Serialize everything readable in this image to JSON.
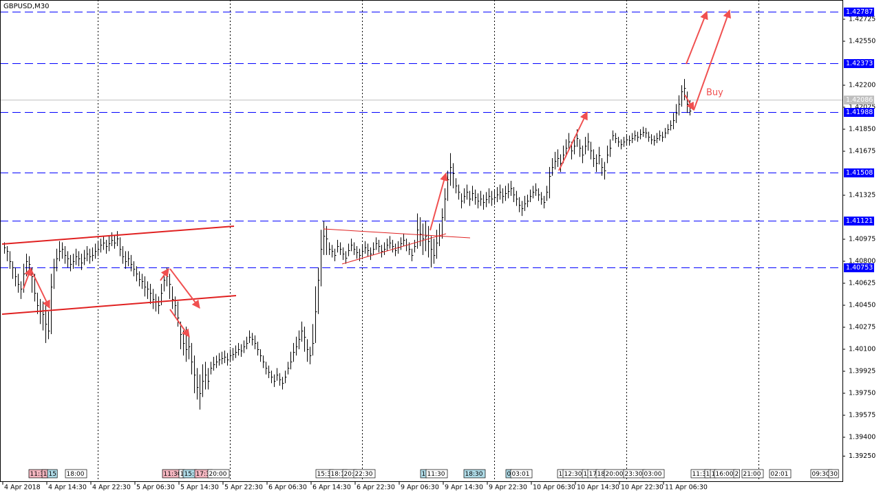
{
  "chart_data": {
    "type": "ohlc",
    "title": "GBPUSD,M30",
    "annotation": "Buy",
    "color": "#000000",
    "xlim": [
      -1.5,
      304.5
    ],
    "ylim": [
      1.3905,
      1.42878
    ],
    "yticks": [
      {
        "value": 1.42725,
        "label": "1.42725"
      },
      {
        "value": 1.4255,
        "label": "1.42550"
      },
      {
        "value": 1.422,
        "label": "1.42200"
      },
      {
        "value": 1.42025,
        "label": "1.42025"
      },
      {
        "value": 1.4185,
        "label": "1.41850"
      },
      {
        "value": 1.41675,
        "label": "1.41675"
      },
      {
        "value": 1.41325,
        "label": "1.41325"
      },
      {
        "value": 1.40975,
        "label": "1.40975"
      },
      {
        "value": 1.408,
        "label": "1.40800"
      },
      {
        "value": 1.40625,
        "label": "1.40625"
      },
      {
        "value": 1.4045,
        "label": "1.40450"
      },
      {
        "value": 1.40275,
        "label": "1.40275"
      },
      {
        "value": 1.401,
        "label": "1.40100"
      },
      {
        "value": 1.39925,
        "label": "1.39925"
      },
      {
        "value": 1.3975,
        "label": "1.39750"
      },
      {
        "value": 1.39575,
        "label": "1.39575"
      },
      {
        "value": 1.394,
        "label": "1.39400"
      },
      {
        "value": 1.3925,
        "label": "1.39250"
      }
    ],
    "xticks": [
      {
        "value": 0,
        "label": "4 Apr 2018"
      },
      {
        "value": 16,
        "label": "4 Apr 14:30"
      },
      {
        "value": 32,
        "label": "4 Apr 22:30"
      },
      {
        "value": 48,
        "label": "5 Apr 06:30"
      },
      {
        "value": 64,
        "label": "5 Apr 14:30"
      },
      {
        "value": 80,
        "label": "5 Apr 22:30"
      },
      {
        "value": 96,
        "label": "6 Apr 06:30"
      },
      {
        "value": 112,
        "label": "6 Apr 14:30"
      },
      {
        "value": 128,
        "label": "6 Apr 22:30"
      },
      {
        "value": 144,
        "label": "9 Apr 06:30"
      },
      {
        "value": 160,
        "label": "9 Apr 14:30"
      },
      {
        "value": 176,
        "label": "9 Apr 22:30"
      },
      {
        "value": 192,
        "label": "10 Apr 06:30"
      },
      {
        "value": 208,
        "label": "10 Apr 14:30"
      },
      {
        "value": 224,
        "label": "10 Apr 22:30"
      },
      {
        "value": 240,
        "label": "11 Apr 06:30"
      }
    ],
    "levels": [
      {
        "value": 1.42787,
        "label": "1.42787"
      },
      {
        "value": 1.42373,
        "label": "1.42373"
      },
      {
        "value": 1.41988,
        "label": "1.41988"
      },
      {
        "value": 1.41508,
        "label": "1.41508"
      },
      {
        "value": 1.41121,
        "label": "1.41121"
      },
      {
        "value": 1.40753,
        "label": "1.40753"
      }
    ],
    "level_color": "#0000ff",
    "current_price": {
      "value": 1.42086,
      "label": "1.42086"
    },
    "event_labels": [
      {
        "text": "11:3",
        "color": "#f4b6c0"
      },
      {
        "text": "1",
        "color": "#f4b6c0"
      },
      {
        "text": "15",
        "color": "#b0dce8"
      },
      {
        "text": "18:00",
        "color": "#ffffff"
      },
      {
        "text": "11:30",
        "color": "#f4b6c0"
      },
      {
        "text": "1",
        "color": "#ffffff"
      },
      {
        "text": "15:",
        "color": "#b0dce8"
      },
      {
        "text": "17:3",
        "color": "#f4b6c0"
      },
      {
        "text": "20:00",
        "color": "#ffffff"
      },
      {
        "text": "15:3",
        "color": "#ffffff"
      },
      {
        "text": "18:1",
        "color": "#ffffff"
      },
      {
        "text": "20:",
        "color": "#ffffff"
      },
      {
        "text": "22:30",
        "color": "#ffffff"
      },
      {
        "text": "1",
        "color": "#b0dce8"
      },
      {
        "text": "11:30",
        "color": "#ffffff"
      },
      {
        "text": "18:30",
        "color": "#b0dce8"
      },
      {
        "text": "0",
        "color": "#b0dce8"
      },
      {
        "text": "03:01",
        "color": "#ffffff"
      },
      {
        "text": "1",
        "color": "#ffffff"
      },
      {
        "text": "12:30",
        "color": "#ffffff"
      },
      {
        "text": "1",
        "color": "#ffffff"
      },
      {
        "text": "17",
        "color": "#ffffff"
      },
      {
        "text": "18",
        "color": "#ffffff"
      },
      {
        "text": "20:00",
        "color": "#ffffff"
      },
      {
        "text": "23:30",
        "color": "#ffffff"
      },
      {
        "text": "03:00",
        "color": "#ffffff"
      },
      {
        "text": "11:3",
        "color": "#ffffff"
      },
      {
        "text": "1",
        "color": "#ffffff"
      },
      {
        "text": "1",
        "color": "#ffffff"
      },
      {
        "text": "16:00",
        "color": "#ffffff"
      },
      {
        "text": "2",
        "color": "#ffffff"
      },
      {
        "text": "21:00",
        "color": "#ffffff"
      },
      {
        "text": "02:01",
        "color": "#ffffff"
      },
      {
        "text": "09:30",
        "color": "#ffffff"
      },
      {
        "text": "30",
        "color": "#ffffff"
      }
    ],
    "high": [
      1.4095,
      1.4092,
      1.4088,
      1.408,
      1.4075,
      1.407,
      1.4064,
      1.4078,
      1.4086,
      1.4084,
      1.4075,
      1.407,
      1.4055,
      1.405,
      1.4048,
      1.4045,
      1.404,
      1.407,
      1.4082,
      1.409,
      1.4096,
      1.4095,
      1.4092,
      1.4088,
      1.4085,
      1.4086,
      1.409,
      1.4088,
      1.4086,
      1.4089,
      1.4092,
      1.409,
      1.4091,
      1.4094,
      1.4096,
      1.4098,
      1.41,
      1.4097,
      1.41,
      1.4103,
      1.4101,
      1.4104,
      1.4099,
      1.4092,
      1.4088,
      1.4088,
      1.4085,
      1.408,
      1.4076,
      1.4072,
      1.407,
      1.4068,
      1.4064,
      1.4062,
      1.4058,
      1.4054,
      1.4052,
      1.4062,
      1.4072,
      1.4075,
      1.407,
      1.406,
      1.4052,
      1.4048,
      1.4032,
      1.4025,
      1.4028,
      1.4022,
      1.4015,
      1.4005,
      1.3995,
      1.399,
      1.3998,
      1.4,
      1.3995,
      1.4,
      1.4004,
      1.4005,
      1.4007,
      1.4008,
      1.4009,
      1.4007,
      1.401,
      1.4011,
      1.4013,
      1.4015,
      1.4014,
      1.4017,
      1.402,
      1.4025,
      1.4023,
      1.4021,
      1.4016,
      1.401,
      1.4005,
      1.4,
      1.3997,
      1.3993,
      1.399,
      1.3995,
      1.3991,
      1.3988,
      1.3993,
      1.4,
      1.4008,
      1.4015,
      1.402,
      1.4025,
      1.4032,
      1.4028,
      1.4018,
      1.4012,
      1.403,
      1.406,
      1.4075,
      1.4105,
      1.4112,
      1.4108,
      1.4095,
      1.4093,
      1.409,
      1.4097,
      1.4095,
      1.4091,
      1.4088,
      1.4094,
      1.4098,
      1.4095,
      1.4092,
      1.409,
      1.4093,
      1.4096,
      1.4094,
      1.4091,
      1.4095,
      1.4099,
      1.4097,
      1.4093,
      1.4095,
      1.4098,
      1.41,
      1.4097,
      1.4094,
      1.4096,
      1.4099,
      1.4102,
      1.4098,
      1.4095,
      1.409,
      1.4097,
      1.4118,
      1.4115,
      1.411,
      1.4112,
      1.4108,
      1.41,
      1.4098,
      1.4105,
      1.411,
      1.4122,
      1.4138,
      1.4152,
      1.4166,
      1.4158,
      1.4146,
      1.4141,
      1.4134,
      1.4138,
      1.4141,
      1.4136,
      1.414,
      1.4137,
      1.4134,
      1.4136,
      1.4133,
      1.4135,
      1.4138,
      1.4136,
      1.4137,
      1.4139,
      1.4141,
      1.4138,
      1.414,
      1.4142,
      1.4144,
      1.4139,
      1.4136,
      1.4131,
      1.4128,
      1.4132,
      1.4133,
      1.4137,
      1.414,
      1.4142,
      1.4138,
      1.4135,
      1.4132,
      1.414,
      1.4155,
      1.4162,
      1.4167,
      1.4169,
      1.4165,
      1.4172,
      1.4177,
      1.4182,
      1.4175,
      1.4179,
      1.4185,
      1.4177,
      1.4172,
      1.4179,
      1.4182,
      1.4175,
      1.4169,
      1.4165,
      1.4171,
      1.4162,
      1.4159,
      1.4172,
      1.4177,
      1.4184,
      1.4182,
      1.4179,
      1.4177,
      1.4179,
      1.4181,
      1.418,
      1.4182,
      1.4184,
      1.4183,
      1.4185,
      1.4187,
      1.4186,
      1.4183,
      1.4181,
      1.418,
      1.4182,
      1.4184,
      1.4183,
      1.4186,
      1.4189,
      1.4192,
      1.4198,
      1.4205,
      1.4212,
      1.422,
      1.4225,
      1.4215,
      1.4208
    ],
    "low": [
      1.4086,
      1.408,
      1.4074,
      1.4066,
      1.406,
      1.4055,
      1.405,
      1.4055,
      1.4068,
      1.407,
      1.4055,
      1.4048,
      1.4038,
      1.403,
      1.4025,
      1.4015,
      1.4018,
      1.4022,
      1.4058,
      1.4072,
      1.408,
      1.4082,
      1.4078,
      1.4075,
      1.4072,
      1.4074,
      1.4077,
      1.4076,
      1.4073,
      1.4077,
      1.408,
      1.4078,
      1.408,
      1.4082,
      1.4084,
      1.4087,
      1.4089,
      1.4086,
      1.4088,
      1.4092,
      1.409,
      1.4092,
      1.4084,
      1.4078,
      1.4074,
      1.4076,
      1.4072,
      1.4068,
      1.4064,
      1.406,
      1.4058,
      1.4052,
      1.405,
      1.4046,
      1.4042,
      1.404,
      1.4038,
      1.4045,
      1.4056,
      1.406,
      1.405,
      1.4042,
      1.4035,
      1.4028,
      1.401,
      1.4005,
      1.4,
      1.4002,
      1.399,
      1.3975,
      1.397,
      1.3962,
      1.3972,
      1.3978,
      1.3978,
      1.399,
      1.3993,
      1.3995,
      1.3997,
      1.3998,
      1.3999,
      1.3997,
      1.4,
      1.4001,
      1.4003,
      1.4005,
      1.4004,
      1.4007,
      1.401,
      1.4015,
      1.4013,
      1.401,
      1.4005,
      1.4,
      1.3995,
      1.399,
      1.3987,
      1.3983,
      1.398,
      1.3985,
      1.3981,
      1.3978,
      1.3983,
      1.399,
      1.3994,
      1.4,
      1.4005,
      1.401,
      1.4016,
      1.4008,
      1.4,
      1.3998,
      1.4005,
      1.4015,
      1.4038,
      1.406,
      1.4085,
      1.4085,
      1.4085,
      1.4083,
      1.408,
      1.4087,
      1.4085,
      1.4081,
      1.4078,
      1.4084,
      1.4088,
      1.4085,
      1.4082,
      1.408,
      1.4083,
      1.4086,
      1.4084,
      1.4081,
      1.4085,
      1.4089,
      1.4087,
      1.4083,
      1.4085,
      1.4088,
      1.409,
      1.4087,
      1.4084,
      1.4086,
      1.4089,
      1.4092,
      1.4088,
      1.4085,
      1.408,
      1.4087,
      1.409,
      1.4092,
      1.4085,
      1.4088,
      1.4083,
      1.4075,
      1.4078,
      1.4082,
      1.4092,
      1.4098,
      1.4112,
      1.4128,
      1.414,
      1.4138,
      1.4134,
      1.4129,
      1.4122,
      1.4126,
      1.4129,
      1.4124,
      1.4128,
      1.4125,
      1.4122,
      1.4124,
      1.4121,
      1.4123,
      1.4126,
      1.4124,
      1.4125,
      1.4127,
      1.4129,
      1.4126,
      1.4128,
      1.413,
      1.4132,
      1.4127,
      1.4124,
      1.4119,
      1.4116,
      1.412,
      1.4123,
      1.4127,
      1.413,
      1.4132,
      1.4128,
      1.4125,
      1.4122,
      1.4128,
      1.413,
      1.4148,
      1.4153,
      1.4155,
      1.4151,
      1.4158,
      1.4163,
      1.4168,
      1.4161,
      1.4165,
      1.4171,
      1.4163,
      1.4158,
      1.4165,
      1.4168,
      1.4161,
      1.4155,
      1.4151,
      1.4157,
      1.4148,
      1.4145,
      1.4158,
      1.4163,
      1.4176,
      1.4174,
      1.4171,
      1.4169,
      1.4171,
      1.4173,
      1.4172,
      1.4174,
      1.4176,
      1.4175,
      1.4177,
      1.4179,
      1.4178,
      1.4175,
      1.4173,
      1.4172,
      1.4174,
      1.4176,
      1.4175,
      1.4178,
      1.4181,
      1.4184,
      1.4185,
      1.419,
      1.4196,
      1.4203,
      1.4208,
      1.4198,
      1.4196
    ],
    "close": [
      1.4091,
      1.4088,
      1.408,
      1.4075,
      1.4068,
      1.4062,
      1.4058,
      1.407,
      1.408,
      1.4078,
      1.4068,
      1.4055,
      1.4045,
      1.404,
      1.4038,
      1.403,
      1.4025,
      1.406,
      1.4075,
      1.4082,
      1.4088,
      1.409,
      1.4085,
      1.4082,
      1.4078,
      1.408,
      1.4084,
      1.4082,
      1.4079,
      1.4083,
      1.4086,
      1.4084,
      1.4085,
      1.4088,
      1.409,
      1.4093,
      1.4095,
      1.4092,
      1.4094,
      1.4097,
      1.4095,
      1.4098,
      1.409,
      1.4084,
      1.408,
      1.4082,
      1.4078,
      1.4074,
      1.407,
      1.4066,
      1.4064,
      1.406,
      1.4058,
      1.4055,
      1.405,
      1.4048,
      1.4045,
      1.4055,
      1.4065,
      1.4068,
      1.4062,
      1.405,
      1.4045,
      1.4035,
      1.4022,
      1.4015,
      1.401,
      1.4012,
      1.4,
      1.399,
      1.398,
      1.3975,
      1.3985,
      1.399,
      1.3985,
      1.3995,
      1.3998,
      1.4,
      1.4002,
      1.4003,
      1.4004,
      1.4002,
      1.4005,
      1.4006,
      1.4008,
      1.401,
      1.4009,
      1.4012,
      1.4015,
      1.402,
      1.4018,
      1.4015,
      1.401,
      1.4005,
      1.4,
      1.3995,
      1.3992,
      1.3988,
      1.3985,
      1.399,
      1.3986,
      1.3983,
      1.3988,
      1.3995,
      1.4,
      1.4008,
      1.4012,
      1.4018,
      1.4025,
      1.402,
      1.401,
      1.4005,
      1.4015,
      1.404,
      1.4065,
      1.409,
      1.41,
      1.4098,
      1.409,
      1.4088,
      1.4085,
      1.4092,
      1.409,
      1.4086,
      1.4083,
      1.4089,
      1.4093,
      1.409,
      1.4087,
      1.4085,
      1.4088,
      1.4091,
      1.4089,
      1.4086,
      1.409,
      1.4094,
      1.4092,
      1.4088,
      1.409,
      1.4093,
      1.4095,
      1.4092,
      1.4089,
      1.4091,
      1.4094,
      1.4097,
      1.4093,
      1.409,
      1.4085,
      1.4092,
      1.4105,
      1.4102,
      1.4098,
      1.41,
      1.4096,
      1.409,
      1.4085,
      1.4095,
      1.41,
      1.4115,
      1.413,
      1.4145,
      1.4155,
      1.415,
      1.414,
      1.4135,
      1.4128,
      1.4132,
      1.4135,
      1.413,
      1.4134,
      1.4131,
      1.4128,
      1.413,
      1.4127,
      1.4129,
      1.4132,
      1.413,
      1.4131,
      1.4133,
      1.4135,
      1.4132,
      1.4134,
      1.4136,
      1.4138,
      1.4133,
      1.413,
      1.4125,
      1.4122,
      1.4126,
      1.4128,
      1.4132,
      1.4135,
      1.4137,
      1.4133,
      1.413,
      1.4127,
      1.4135,
      1.4148,
      1.4155,
      1.416,
      1.4162,
      1.4158,
      1.4165,
      1.417,
      1.4175,
      1.4168,
      1.4172,
      1.4178,
      1.417,
      1.4165,
      1.4172,
      1.4175,
      1.4168,
      1.4162,
      1.4158,
      1.4164,
      1.4155,
      1.4152,
      1.4165,
      1.417,
      1.418,
      1.4178,
      1.4175,
      1.4173,
      1.4175,
      1.4177,
      1.4176,
      1.4178,
      1.418,
      1.4179,
      1.4181,
      1.4183,
      1.4182,
      1.4179,
      1.4177,
      1.4176,
      1.4178,
      1.418,
      1.4179,
      1.4182,
      1.4185,
      1.4188,
      1.4192,
      1.4198,
      1.4205,
      1.4215,
      1.4218,
      1.4205,
      1.42
    ]
  }
}
